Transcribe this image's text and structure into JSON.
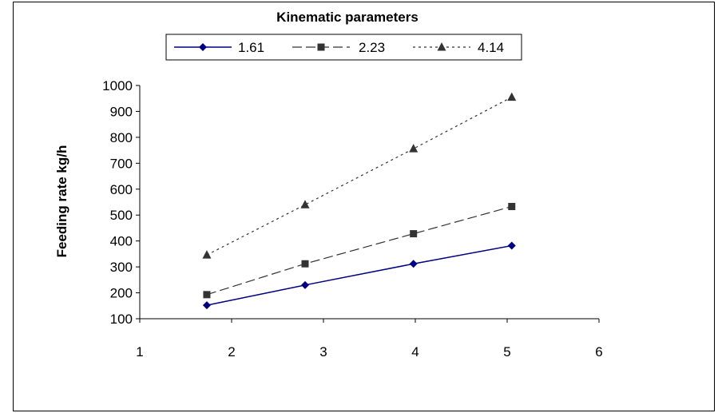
{
  "chart_data": {
    "type": "line",
    "title": "",
    "legend_title": "Kinematic parameters",
    "legend_position": "top-center",
    "xlabel": "",
    "ylabel": "Feeding rate kg/h",
    "xlim": [
      1,
      6
    ],
    "ylim": [
      100,
      1000
    ],
    "xticks": [
      "1",
      "2",
      "3",
      "4",
      "5",
      "6"
    ],
    "yticks": [
      "100",
      "200",
      "300",
      "400",
      "500",
      "600",
      "700",
      "800",
      "900",
      "1000"
    ],
    "grid": false,
    "series": [
      {
        "name": "1.61",
        "color": "#000080",
        "line_style": "solid",
        "marker": "diamond",
        "x": [
          1.73,
          2.8,
          3.98,
          5.05
        ],
        "y": [
          152,
          230,
          312,
          382
        ]
      },
      {
        "name": "2.23",
        "color": "#333333",
        "line_style": "dashed",
        "marker": "square",
        "x": [
          1.73,
          2.8,
          3.98,
          5.05
        ],
        "y": [
          193,
          312,
          428,
          533
        ]
      },
      {
        "name": "4.14",
        "color": "#333333",
        "line_style": "dotted",
        "marker": "triangle",
        "x": [
          1.73,
          2.8,
          3.98,
          5.05
        ],
        "y": [
          346,
          540,
          756,
          955
        ]
      }
    ]
  }
}
